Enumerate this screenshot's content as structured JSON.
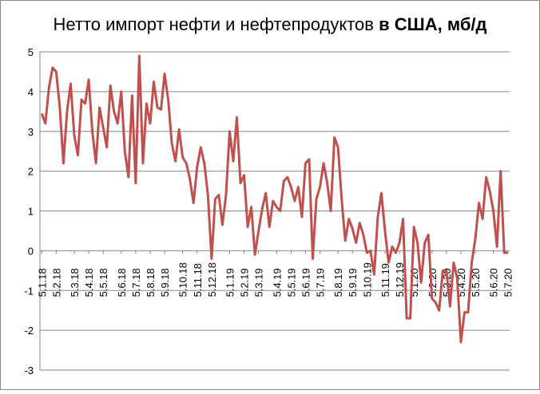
{
  "chart_data": {
    "type": "line",
    "title_parts": [
      "Нетто импорт нефти и нефтепродуктов",
      "в США, мб/д"
    ],
    "categories": [
      "5.1.18",
      null,
      null,
      null,
      "5.2.18",
      null,
      null,
      null,
      null,
      "5.3.18",
      null,
      null,
      null,
      "5.4.18",
      null,
      null,
      null,
      "5.5.18",
      null,
      null,
      null,
      null,
      "5.6.18",
      null,
      null,
      null,
      "5.7.18",
      null,
      null,
      null,
      "5.8.18",
      null,
      null,
      null,
      "5.9.18",
      null,
      null,
      null,
      null,
      "5.10.18",
      null,
      null,
      null,
      "5.11.18",
      null,
      null,
      null,
      "5.12.18",
      null,
      null,
      null,
      null,
      "5.1.19",
      null,
      null,
      null,
      "5.2.19",
      null,
      null,
      null,
      "5.3.19",
      null,
      null,
      null,
      null,
      "5.4.19",
      null,
      null,
      null,
      "5.5.19",
      null,
      null,
      null,
      "5.6.19",
      null,
      null,
      null,
      "5.7.19",
      null,
      null,
      null,
      null,
      "5.8.19",
      null,
      null,
      null,
      "5.9.19",
      null,
      null,
      null,
      "5.10.19",
      null,
      null,
      null,
      null,
      "5.11.19",
      null,
      null,
      null,
      "5.12.19",
      null,
      null,
      null,
      "5.1.20",
      null,
      null,
      null,
      null,
      "5.2.20",
      null,
      null,
      null,
      "5.3.20",
      null,
      null,
      null,
      "5.4.20",
      null,
      null,
      null,
      "5.5.20",
      null,
      null,
      null,
      null,
      "5.6.20",
      null,
      null,
      null,
      "5.7.20"
    ],
    "series": [
      {
        "color": "#c0504d",
        "values": [
          3.45,
          3.2,
          4.1,
          4.6,
          4.5,
          3.6,
          2.2,
          3.5,
          4.2,
          2.9,
          2.4,
          3.8,
          3.7,
          4.3,
          3.0,
          2.2,
          3.6,
          3.1,
          2.6,
          4.15,
          3.5,
          3.2,
          4.0,
          2.5,
          1.85,
          3.9,
          1.7,
          4.9,
          2.2,
          3.7,
          3.2,
          4.25,
          3.6,
          3.55,
          4.45,
          3.8,
          2.7,
          2.25,
          3.05,
          2.35,
          2.2,
          1.8,
          1.2,
          2.1,
          2.6,
          2.2,
          1.4,
          -0.2,
          1.3,
          1.4,
          0.65,
          1.4,
          3.0,
          2.25,
          3.35,
          1.7,
          1.9,
          0.6,
          1.1,
          -0.1,
          0.5,
          1.05,
          1.45,
          0.6,
          1.25,
          1.1,
          1.0,
          1.75,
          1.85,
          1.6,
          1.25,
          1.6,
          0.85,
          2.2,
          2.3,
          -0.2,
          1.3,
          1.6,
          2.2,
          1.7,
          1.0,
          2.85,
          2.6,
          1.3,
          0.25,
          0.8,
          0.55,
          0.2,
          0.7,
          0.4,
          -0.05,
          0,
          -0.6,
          0.85,
          1.45,
          0.5,
          -0.3,
          0.1,
          -0.05,
          0.2,
          0.8,
          -1.7,
          -1.7,
          0.6,
          0.2,
          -0.8,
          0.2,
          0.4,
          -1.2,
          -1.3,
          -1.5,
          -0.5,
          -0.5,
          -1.4,
          -0.3,
          -0.7,
          -2.3,
          -1.55,
          -1.55,
          -0.3,
          0.3,
          1.2,
          0.8,
          1.85,
          1.5,
          1.0,
          0.1,
          2.0,
          -0.05,
          -0.05
        ]
      }
    ],
    "ylim": [
      -3,
      5
    ],
    "yticks": [
      -3,
      -2,
      -1,
      0,
      1,
      2,
      3,
      4,
      5
    ],
    "grid": true
  }
}
